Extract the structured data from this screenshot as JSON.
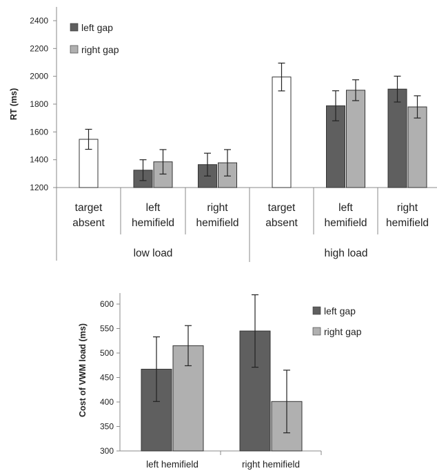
{
  "chart_data": [
    {
      "type": "bar",
      "ylabel": "RT (ms)",
      "ylim": [
        1200,
        2400
      ],
      "yticks": [
        1200,
        1400,
        1600,
        1800,
        2000,
        2200,
        2400
      ],
      "grid": false,
      "legend": {
        "placement": "top-left",
        "entries": [
          "left gap",
          "right gap"
        ]
      },
      "groups": [
        {
          "label": "low load",
          "categories": [
            {
              "label": [
                "target",
                "absent"
              ],
              "bars": [
                {
                  "series": "target absent",
                  "value": 1547,
                  "error": 72,
                  "color": "#ffffff"
                }
              ]
            },
            {
              "label": [
                "left",
                "hemifield"
              ],
              "bars": [
                {
                  "series": "left gap",
                  "value": 1325,
                  "error": 75,
                  "color": "#5f5f5f"
                },
                {
                  "series": "right gap",
                  "value": 1385,
                  "error": 88,
                  "color": "#b0b0b0"
                }
              ]
            },
            {
              "label": [
                "right",
                "hemifield"
              ],
              "bars": [
                {
                  "series": "left gap",
                  "value": 1365,
                  "error": 82,
                  "color": "#5f5f5f"
                },
                {
                  "series": "right gap",
                  "value": 1378,
                  "error": 95,
                  "color": "#b0b0b0"
                }
              ]
            }
          ]
        },
        {
          "label": "high load",
          "categories": [
            {
              "label": [
                "target",
                "absent"
              ],
              "bars": [
                {
                  "series": "target absent",
                  "value": 1995,
                  "error": 100,
                  "color": "#ffffff"
                }
              ]
            },
            {
              "label": [
                "left",
                "hemifield"
              ],
              "bars": [
                {
                  "series": "left gap",
                  "value": 1788,
                  "error": 108,
                  "color": "#5f5f5f"
                },
                {
                  "series": "right gap",
                  "value": 1900,
                  "error": 75,
                  "color": "#b0b0b0"
                }
              ]
            },
            {
              "label": [
                "right",
                "hemifield"
              ],
              "bars": [
                {
                  "series": "left gap",
                  "value": 1908,
                  "error": 93,
                  "color": "#5f5f5f"
                },
                {
                  "series": "right gap",
                  "value": 1780,
                  "error": 80,
                  "color": "#b0b0b0"
                }
              ]
            }
          ]
        }
      ]
    },
    {
      "type": "bar",
      "ylabel": "Cost of VWM load (ms)",
      "ylim": [
        300,
        620
      ],
      "yticks": [
        300,
        350,
        400,
        450,
        500,
        550,
        600
      ],
      "grid": false,
      "categories": [
        "left hemifield",
        "right hemifield"
      ],
      "series": [
        {
          "name": "left gap",
          "color": "#5f5f5f",
          "values": [
            467,
            545
          ],
          "errors": [
            66,
            74
          ]
        },
        {
          "name": "right gap",
          "color": "#b0b0b0",
          "values": [
            515,
            401
          ],
          "errors": [
            41,
            64
          ]
        }
      ],
      "legend": {
        "placement": "right",
        "entries": [
          "left gap",
          "right gap"
        ]
      }
    }
  ]
}
